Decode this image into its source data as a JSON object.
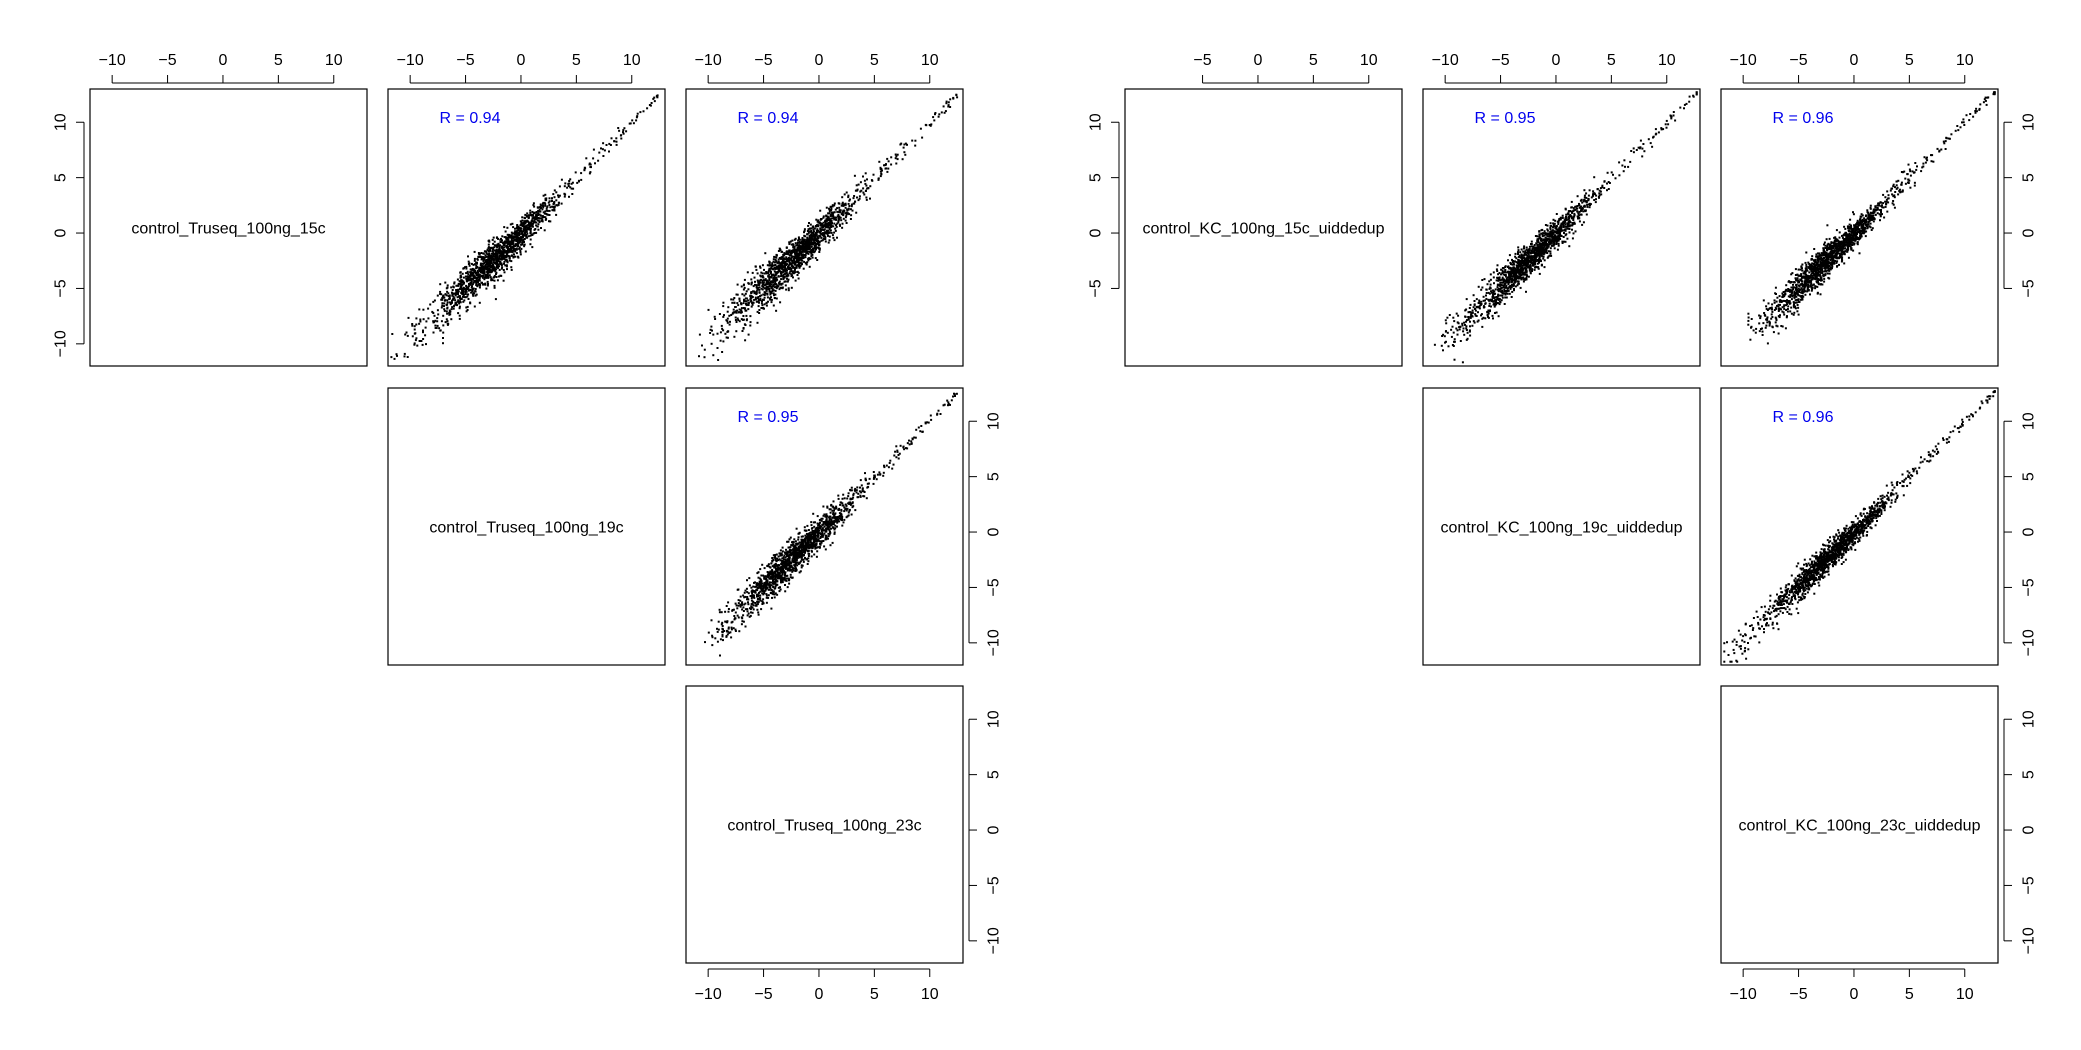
{
  "chart_data": [
    {
      "type": "scatter",
      "layout": "pairs-upper-triangle",
      "variables": [
        "control_Truseq_100ng_15c",
        "control_Truseq_100ng_19c",
        "control_Truseq_100ng_23c"
      ],
      "axis_range": [
        -12,
        13
      ],
      "ticks": [
        -10,
        -5,
        0,
        5,
        10
      ],
      "top_axis_ticks": [
        [
          -10,
          -5,
          0,
          5,
          10
        ],
        [
          -10,
          -5,
          0,
          5,
          10
        ],
        [
          -10,
          -5,
          0,
          5,
          10
        ]
      ],
      "bottom_axis_ticks": [
        null,
        null,
        [
          -10,
          -5,
          0,
          5,
          10
        ]
      ],
      "left_axis_ticks": [
        [
          -10,
          -5,
          0,
          5,
          10
        ],
        null,
        null
      ],
      "right_axis_ticks": [
        null,
        [
          -10,
          -5,
          0,
          5,
          10
        ],
        [
          -10,
          -5,
          0,
          5,
          10
        ]
      ],
      "panels": [
        {
          "row": 0,
          "col": 1,
          "x_var": "control_Truseq_100ng_19c",
          "y_var": "control_Truseq_100ng_15c",
          "annotation": "R = 0.94",
          "x_range": [
            -11,
            12.5
          ],
          "spread": 1.6,
          "n_points": 1500
        },
        {
          "row": 0,
          "col": 2,
          "x_var": "control_Truseq_100ng_23c",
          "y_var": "control_Truseq_100ng_15c",
          "annotation": "R = 0.94",
          "x_range": [
            -10,
            12.5
          ],
          "spread": 1.6,
          "n_points": 1500
        },
        {
          "row": 1,
          "col": 2,
          "x_var": "control_Truseq_100ng_23c",
          "y_var": "control_Truseq_100ng_19c",
          "annotation": "R = 0.95",
          "x_range": [
            -9.5,
            12.5
          ],
          "spread": 1.45,
          "n_points": 1500
        }
      ]
    },
    {
      "type": "scatter",
      "layout": "pairs-upper-triangle",
      "variables": [
        "control_KC_100ng_15c_uiddedup",
        "control_KC_100ng_19c_uiddedup",
        "control_KC_100ng_23c_uiddedup"
      ],
      "axis_range": [
        -12,
        13
      ],
      "ticks": [
        -10,
        -5,
        0,
        5,
        10
      ],
      "top_axis_ticks": [
        [
          -5,
          0,
          5,
          10
        ],
        [
          -10,
          -5,
          0,
          5,
          10
        ],
        [
          -10,
          -5,
          0,
          5,
          10
        ]
      ],
      "bottom_axis_ticks": [
        null,
        null,
        [
          -10,
          -5,
          0,
          5,
          10
        ]
      ],
      "left_axis_ticks": [
        [
          -5,
          0,
          5,
          10
        ],
        null,
        null
      ],
      "right_axis_ticks": [
        [
          -5,
          0,
          5,
          10
        ],
        [
          -10,
          -5,
          0,
          5,
          10
        ],
        [
          -10,
          -5,
          0,
          5,
          10
        ]
      ],
      "panels": [
        {
          "row": 0,
          "col": 1,
          "x_var": "control_KC_100ng_19c_uiddedup",
          "y_var": "control_KC_100ng_15c_uiddedup",
          "annotation": "R = 0.95",
          "x_range": [
            -10,
            13
          ],
          "spread": 1.35,
          "n_points": 1500
        },
        {
          "row": 0,
          "col": 2,
          "x_var": "control_KC_100ng_23c_uiddedup",
          "y_var": "control_KC_100ng_15c_uiddedup",
          "annotation": "R = 0.96",
          "x_range": [
            -9,
            13
          ],
          "spread": 1.25,
          "n_points": 1500
        },
        {
          "row": 1,
          "col": 2,
          "x_var": "control_KC_100ng_23c_uiddedup",
          "y_var": "control_KC_100ng_19c_uiddedup",
          "annotation": "R = 0.96",
          "x_range": [
            -11.5,
            13
          ],
          "spread": 1.25,
          "n_points": 1500
        }
      ]
    }
  ],
  "colors": {
    "annotation": "#0000ee",
    "points": "#000000",
    "frame": "#000000"
  }
}
